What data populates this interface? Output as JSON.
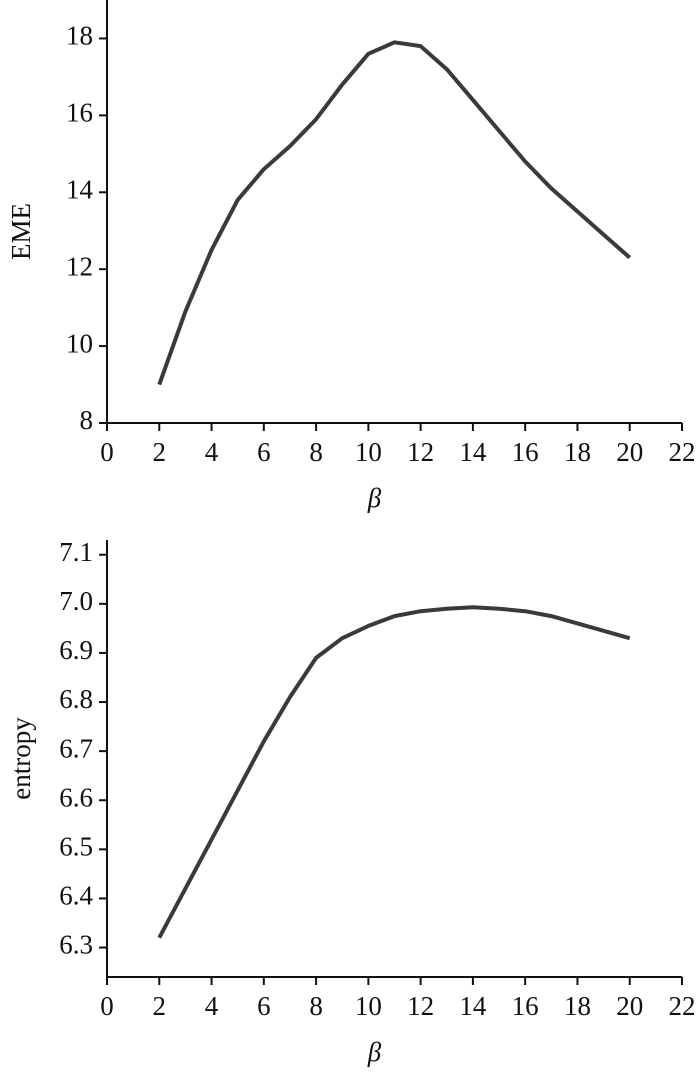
{
  "chart_data": [
    {
      "type": "line",
      "x_label": "β",
      "y_label": "EME",
      "x": [
        2,
        3,
        4,
        5,
        6,
        7,
        8,
        9,
        10,
        11,
        12,
        13,
        14,
        15,
        16,
        17,
        18,
        19,
        20
      ],
      "series": [
        {
          "color": "#3a3a3a",
          "values": [
            9.0,
            10.9,
            12.5,
            13.8,
            14.6,
            15.2,
            15.9,
            16.8,
            17.6,
            17.9,
            17.8,
            17.2,
            16.4,
            15.6,
            14.8,
            14.1,
            13.5,
            12.9,
            12.3
          ]
        }
      ],
      "xlim": [
        0,
        22
      ],
      "xticks": [
        0,
        2,
        4,
        6,
        8,
        10,
        12,
        14,
        16,
        18,
        20,
        22
      ],
      "ylim": [
        8,
        19
      ],
      "yticks": [
        8,
        10,
        12,
        14,
        16,
        18
      ]
    },
    {
      "type": "line",
      "x_label": "β",
      "y_label": "entropy",
      "x": [
        2,
        3,
        4,
        5,
        6,
        7,
        8,
        9,
        10,
        11,
        12,
        13,
        14,
        15,
        16,
        17,
        18,
        19,
        20
      ],
      "series": [
        {
          "color": "#3a3a3a",
          "values": [
            6.32,
            6.42,
            6.52,
            6.62,
            6.72,
            6.81,
            6.89,
            6.93,
            6.955,
            6.975,
            6.985,
            6.99,
            6.993,
            6.99,
            6.985,
            6.975,
            6.96,
            6.945,
            6.93
          ]
        }
      ],
      "xlim": [
        0,
        22
      ],
      "xticks": [
        0,
        2,
        4,
        6,
        8,
        10,
        12,
        14,
        16,
        18,
        20,
        22
      ],
      "ylim": [
        6.24,
        7.13
      ],
      "yticks": [
        6.3,
        6.4,
        6.5,
        6.6,
        6.7,
        6.8,
        6.9,
        {
          "value": 7,
          "label": "7.0"
        },
        7.1
      ]
    }
  ]
}
